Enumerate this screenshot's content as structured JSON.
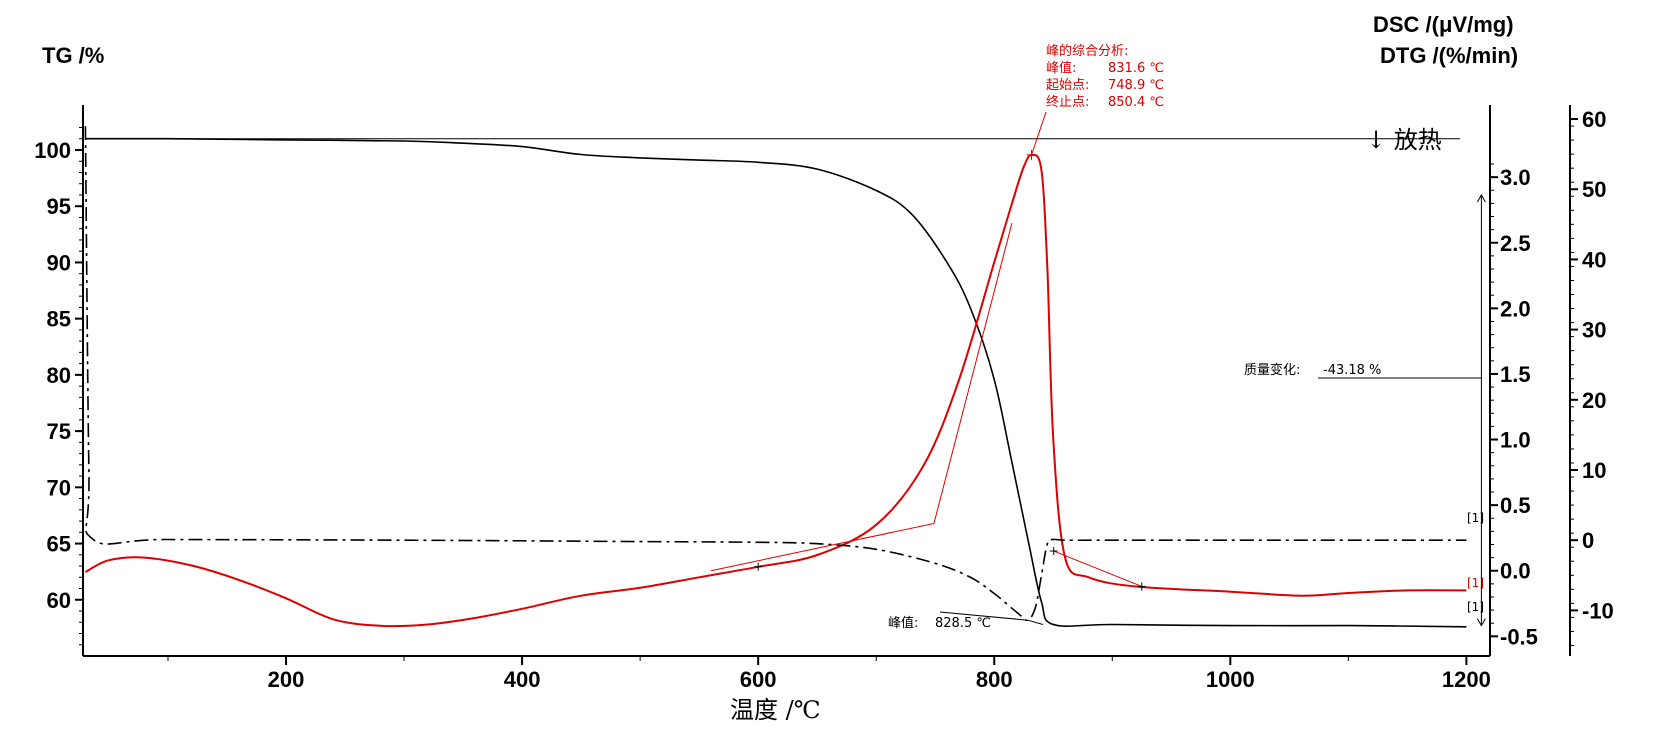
{
  "chart_data": {
    "type": "line",
    "x": {
      "label": "温度 /℃",
      "range": [
        28,
        1220
      ],
      "ticks": [
        200,
        400,
        600,
        800,
        1000,
        1200
      ]
    },
    "axes": {
      "tg": {
        "label": "TG /%",
        "range": [
          55.0,
          104.0
        ],
        "ticks": [
          60,
          65,
          70,
          75,
          80,
          85,
          90,
          95,
          100
        ]
      },
      "dsc": {
        "label": "DSC /(μV/mg)",
        "range": [
          -0.65,
          3.55
        ],
        "ticks": [
          "-0.5",
          "0.0",
          "0.5",
          "1.0",
          "1.5",
          "2.0",
          "2.5",
          "3.0"
        ]
      },
      "dtg": {
        "label": "DTG /(%/min)",
        "range": [
          -16.5,
          62.0
        ],
        "ticks": [
          -10,
          0,
          10,
          20,
          30,
          40,
          50,
          60
        ]
      }
    },
    "series": [
      {
        "axis": "tg",
        "color": "#000000",
        "dash": "solid",
        "x": [
          30,
          100,
          200,
          300,
          350,
          400,
          450,
          500,
          550,
          600,
          650,
          700,
          730,
          760,
          780,
          800,
          815,
          830,
          840,
          850,
          900,
          1000,
          1100,
          1200
        ],
        "y": [
          101.0,
          101.0,
          100.9,
          100.8,
          100.6,
          100.3,
          99.6,
          99.3,
          99.1,
          98.9,
          98.3,
          96.4,
          94.3,
          90.0,
          85.9,
          79.6,
          72.2,
          64.6,
          59.8,
          57.8,
          57.8,
          57.7,
          57.7,
          57.6
        ]
      },
      {
        "axis": "dsc",
        "color": "#dd0000",
        "dash": "solid",
        "x": [
          30,
          50,
          80,
          120,
          160,
          200,
          240,
          280,
          320,
          360,
          400,
          450,
          500,
          550,
          600,
          650,
          700,
          740,
          770,
          800,
          815,
          825,
          832,
          840,
          845,
          850,
          860,
          880,
          920,
          1000,
          1060,
          1100,
          1150,
          1200
        ],
        "y": [
          -0.01,
          0.08,
          0.1,
          0.04,
          -0.07,
          -0.21,
          -0.37,
          -0.42,
          -0.41,
          -0.36,
          -0.29,
          -0.19,
          -0.13,
          -0.05,
          0.03,
          0.12,
          0.35,
          0.8,
          1.45,
          2.35,
          2.8,
          3.08,
          3.17,
          3.05,
          2.3,
          1.0,
          0.1,
          -0.05,
          -0.12,
          -0.16,
          -0.19,
          -0.17,
          -0.15,
          -0.15
        ]
      },
      {
        "axis": "dtg",
        "color": "#000000",
        "dash": "dashdot",
        "x": [
          30,
          33,
          36,
          100,
          300,
          500,
          600,
          650,
          700,
          750,
          780,
          800,
          820,
          828.5,
          835,
          840,
          845,
          850,
          860,
          900,
          1000,
          1100,
          1200
        ],
        "y": [
          59.0,
          10.0,
          0.2,
          0.1,
          0.0,
          -0.2,
          -0.3,
          -0.5,
          -1.3,
          -3.3,
          -5.3,
          -7.6,
          -10.4,
          -11.4,
          -9.5,
          -5.0,
          -0.5,
          0.1,
          0.0,
          0.0,
          0.0,
          0.0,
          0.0
        ]
      }
    ],
    "annotations": {
      "peak_title": "峰的综合分析:",
      "peak_value_label": "峰值:",
      "peak_value": "831.6 ℃",
      "onset_label": "起始点:",
      "onset_value": "748.9 ℃",
      "endset_label": "终止点:",
      "endset_value": "850.4 ℃",
      "exo_label": "↓ 放热",
      "mass_change_label": "质量变化:",
      "mass_change_value": "-43.18 %",
      "dtg_peak_label": "峰值:",
      "dtg_peak_value": "828.5 ℃",
      "seg_marker": "[1]"
    },
    "colors": {
      "dsc": "#dd0000",
      "tg": "#000000",
      "dtg": "#000000"
    }
  }
}
